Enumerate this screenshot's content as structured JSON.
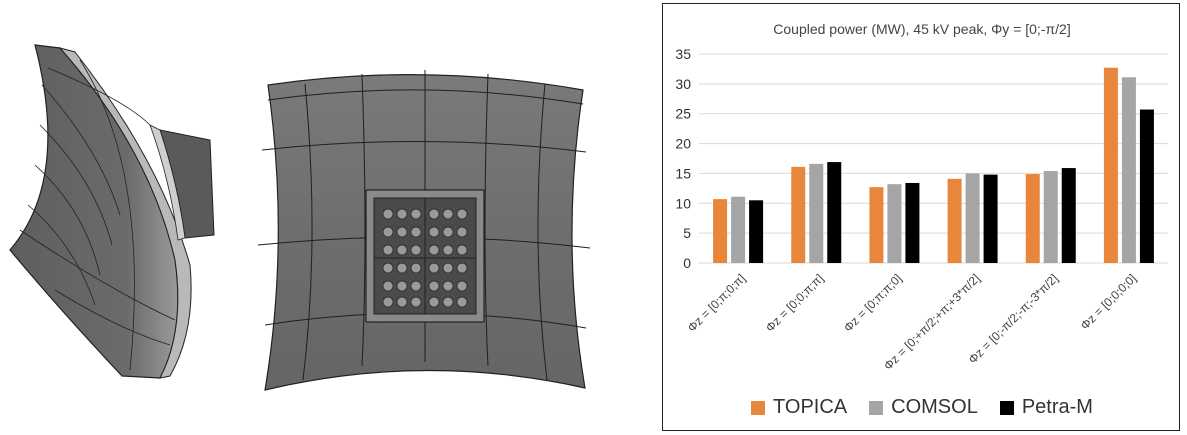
{
  "chart_data": {
    "type": "bar",
    "title": "Coupled power (MW), 45 kV peak, Φy = [0;-π/2]",
    "xlabel": "",
    "ylabel": "",
    "ylim": [
      0,
      35
    ],
    "yticks": [
      0,
      5,
      10,
      15,
      20,
      25,
      30,
      35
    ],
    "grid": true,
    "legend_position": "bottom",
    "categories": [
      "Φz = [0;π;0;π]",
      "Φz = [0;0;π;π]",
      "Φz = [0;π;π;0]",
      "Φz = [0;+π/2;+π;+3*π/2]",
      "Φz = [0;-π/2;-π;-3*π/2]",
      "Φz = [0;0;0;0]"
    ],
    "series": [
      {
        "name": "TOPICA",
        "color": "#E8873B",
        "values": [
          10.7,
          16.1,
          12.7,
          14.1,
          14.9,
          32.7
        ]
      },
      {
        "name": "COMSOL",
        "color": "#A5A5A5",
        "values": [
          11.1,
          16.6,
          13.2,
          15.0,
          15.4,
          31.1
        ]
      },
      {
        "name": "Petra-M",
        "color": "#000000",
        "values": [
          10.5,
          16.9,
          13.4,
          14.8,
          15.9,
          25.7
        ]
      }
    ]
  },
  "colors": {
    "grid": "#D9D9D9",
    "surface": "#6f6f6f",
    "surface_light": "#8a8a8a",
    "mesh": "#222222"
  }
}
